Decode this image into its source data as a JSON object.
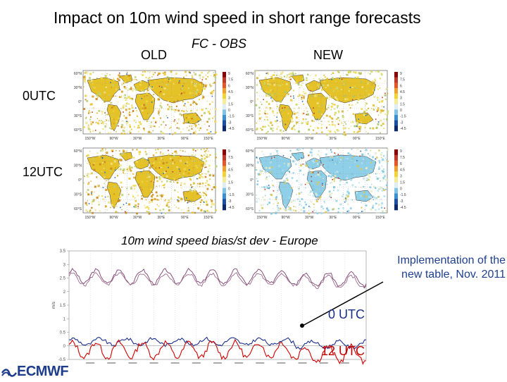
{
  "title": "Impact on 10m wind speed in short range forecasts",
  "labels": {
    "old": "OLD",
    "fc_obs": "FC - OBS",
    "new": "NEW",
    "row_0utc": "0UTC",
    "row_12utc": "12UTC"
  },
  "maps": {
    "lat_ticks": [
      "60°N",
      "30°N",
      "0°",
      "30°S",
      "60°S"
    ],
    "lon_ticks": [
      "150°W",
      "90°W",
      "30°W",
      "30°E",
      "90°E",
      "150°E"
    ],
    "colorbar_ticks": [
      "9",
      "7.5",
      "6",
      "4.5",
      "3",
      "1.5",
      "0",
      "-1.5",
      "-3",
      "-4.5"
    ]
  },
  "line_chart": {
    "caption": "10m wind speed bias/st dev - Europe",
    "ylabel": "m/s",
    "y_ticks": [
      "3.5",
      "3",
      "2.5",
      "2",
      "1.5",
      "1",
      "0.5",
      "0",
      "-0.5"
    ],
    "annotation": "Implementation of the new table, Nov. 2011",
    "series_0utc_label": "0 UTC",
    "series_12utc_label": "12 UTC"
  },
  "logo": "ECMWF",
  "colors": {
    "bias_0utc": "#1a2e8a",
    "bias_12utc": "#d00000",
    "stdev_line": "#7b3f6e",
    "implementation_text": "#1f3f8f"
  }
}
